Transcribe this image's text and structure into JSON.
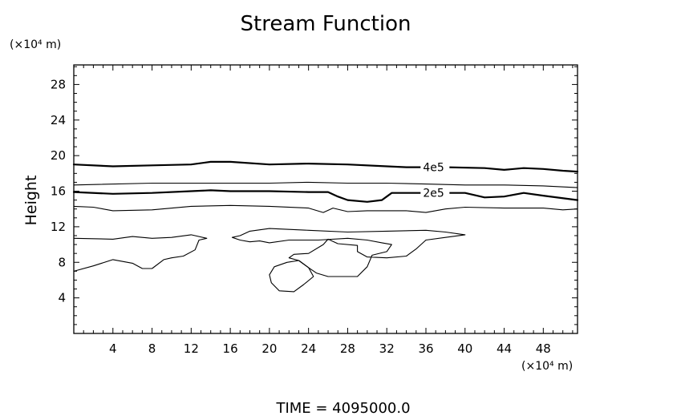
{
  "chart_data": {
    "type": "contour",
    "title": "Stream Function",
    "ylabel": "Height",
    "xunit": "(×10⁴ m)",
    "yunit": "(×10⁴ m)",
    "footer": "TIME  =  4095000.0",
    "xlim": [
      0,
      51.5
    ],
    "ylim": [
      0,
      30.2
    ],
    "xticks": [
      4,
      8,
      12,
      16,
      20,
      24,
      28,
      32,
      36,
      40,
      44,
      48
    ],
    "yticks": [
      4,
      8,
      12,
      16,
      20,
      24,
      28
    ],
    "grid": false,
    "contours": [
      {
        "name": "4e5",
        "label": "4e5",
        "label_at": [
          35.7,
          18.7
        ],
        "bold": true,
        "points": [
          [
            0,
            19.0
          ],
          [
            4,
            18.8
          ],
          [
            8,
            18.9
          ],
          [
            12,
            19.0
          ],
          [
            14,
            19.3
          ],
          [
            16,
            19.3
          ],
          [
            20,
            19.0
          ],
          [
            24,
            19.1
          ],
          [
            28,
            19.0
          ],
          [
            32,
            18.8
          ],
          [
            34,
            18.7
          ],
          [
            38,
            18.7
          ],
          [
            42,
            18.6
          ],
          [
            44,
            18.4
          ],
          [
            46,
            18.6
          ],
          [
            48,
            18.5
          ],
          [
            50,
            18.3
          ],
          [
            51.5,
            18.2
          ]
        ]
      },
      {
        "name": "",
        "label": "",
        "bold": false,
        "points": [
          [
            0,
            16.7
          ],
          [
            8,
            16.9
          ],
          [
            16,
            16.9
          ],
          [
            20,
            16.9
          ],
          [
            24,
            17.0
          ],
          [
            28,
            16.9
          ],
          [
            32,
            16.9
          ],
          [
            36,
            16.8
          ],
          [
            40,
            16.7
          ],
          [
            44,
            16.7
          ],
          [
            48,
            16.6
          ],
          [
            51.5,
            16.4
          ]
        ]
      },
      {
        "name": "2e5",
        "label": "2e5",
        "label_at": [
          35.7,
          15.8
        ],
        "bold": true,
        "points": [
          [
            0,
            15.9
          ],
          [
            4,
            15.7
          ],
          [
            8,
            15.8
          ],
          [
            12,
            16.0
          ],
          [
            14,
            16.1
          ],
          [
            16,
            16.0
          ],
          [
            20,
            16.0
          ],
          [
            24,
            15.9
          ],
          [
            26,
            15.9
          ],
          [
            27,
            15.4
          ],
          [
            28,
            15.0
          ],
          [
            30,
            14.8
          ],
          [
            31.5,
            15.0
          ],
          [
            32,
            15.4
          ],
          [
            32.5,
            15.8
          ],
          [
            36,
            15.8
          ],
          [
            40,
            15.8
          ],
          [
            42,
            15.3
          ],
          [
            44,
            15.4
          ],
          [
            46,
            15.8
          ],
          [
            48,
            15.5
          ],
          [
            51.5,
            15.0
          ]
        ]
      },
      {
        "name": "",
        "label": "",
        "bold": false,
        "points": [
          [
            0,
            14.3
          ],
          [
            2,
            14.2
          ],
          [
            4,
            13.8
          ],
          [
            8,
            13.9
          ],
          [
            12,
            14.3
          ],
          [
            16,
            14.4
          ],
          [
            20,
            14.3
          ],
          [
            24,
            14.1
          ],
          [
            25.5,
            13.6
          ],
          [
            26.5,
            14.1
          ],
          [
            28,
            13.7
          ],
          [
            30,
            13.8
          ],
          [
            34,
            13.8
          ],
          [
            36,
            13.6
          ],
          [
            38,
            14.0
          ],
          [
            40,
            14.2
          ],
          [
            44,
            14.1
          ],
          [
            48,
            14.1
          ],
          [
            50,
            13.9
          ],
          [
            51.5,
            14.0
          ]
        ]
      },
      {
        "name": "",
        "label": "",
        "bold": false,
        "points": [
          [
            0,
            10.7
          ],
          [
            4,
            10.6
          ],
          [
            6,
            10.9
          ],
          [
            8,
            10.7
          ],
          [
            10,
            10.8
          ],
          [
            12,
            11.1
          ],
          [
            13.6,
            10.7
          ],
          [
            12.8,
            10.5
          ],
          [
            12.4,
            9.4
          ],
          [
            11.2,
            8.7
          ],
          [
            10,
            8.5
          ],
          [
            9.2,
            8.3
          ],
          [
            8,
            7.3
          ],
          [
            7,
            7.3
          ],
          [
            6,
            7.9
          ],
          [
            4,
            8.3
          ],
          [
            2,
            7.6
          ],
          [
            0,
            7.0
          ]
        ]
      },
      {
        "name": "",
        "label": "",
        "bold": false,
        "points": [
          [
            16.2,
            10.8
          ],
          [
            17,
            11.0
          ],
          [
            18,
            11.5
          ],
          [
            20,
            11.8
          ],
          [
            24,
            11.6
          ],
          [
            28,
            11.4
          ],
          [
            32,
            11.5
          ],
          [
            36,
            11.6
          ],
          [
            38,
            11.4
          ],
          [
            40,
            11.1
          ],
          [
            38,
            10.8
          ],
          [
            36,
            10.5
          ],
          [
            35,
            9.5
          ],
          [
            34,
            8.7
          ],
          [
            32,
            8.5
          ],
          [
            30,
            8.6
          ],
          [
            29,
            9.2
          ],
          [
            29,
            9.9
          ],
          [
            27,
            10.1
          ],
          [
            26,
            10.6
          ],
          [
            25.5,
            10.0
          ],
          [
            24,
            9.0
          ],
          [
            22.5,
            8.9
          ],
          [
            22,
            8.5
          ],
          [
            23,
            8.2
          ],
          [
            24,
            7.4
          ],
          [
            24.8,
            6.8
          ],
          [
            26,
            6.4
          ],
          [
            29,
            6.4
          ],
          [
            30,
            7.5
          ],
          [
            30.5,
            8.8
          ],
          [
            32,
            9.2
          ],
          [
            32.5,
            10.0
          ],
          [
            31.5,
            10.2
          ],
          [
            30,
            10.5
          ],
          [
            28,
            10.7
          ],
          [
            25,
            10.5
          ],
          [
            22,
            10.5
          ],
          [
            20,
            10.2
          ],
          [
            19,
            10.4
          ],
          [
            18,
            10.3
          ],
          [
            17,
            10.5
          ],
          [
            16.2,
            10.8
          ]
        ]
      },
      {
        "name": "",
        "label": "",
        "bold": false,
        "points": [
          [
            20,
            6.6
          ],
          [
            20.5,
            7.5
          ],
          [
            21.8,
            8.0
          ],
          [
            23,
            8.2
          ],
          [
            24,
            7.4
          ],
          [
            24.5,
            6.4
          ],
          [
            23.5,
            5.5
          ],
          [
            22.5,
            4.7
          ],
          [
            21,
            4.8
          ],
          [
            20.2,
            5.7
          ],
          [
            20,
            6.6
          ]
        ]
      }
    ]
  }
}
